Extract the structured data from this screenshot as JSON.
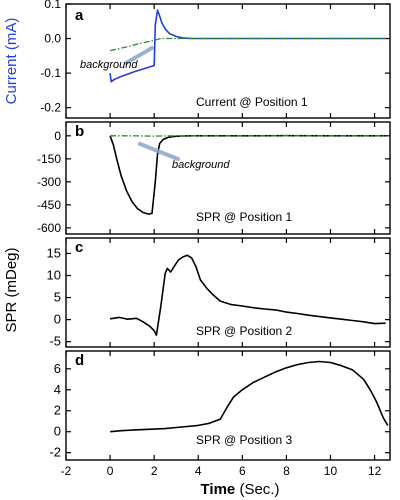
{
  "colors": {
    "current": "#1f3fe0",
    "background_trace": "#2e8b2e",
    "signal": "#000000",
    "axis": "#000000",
    "ylabel_current": "#1f3fe0"
  },
  "xaxis": {
    "label_bold": "Time",
    "label_rest": " (Sec.)",
    "range": [
      -2,
      12.7
    ],
    "ticks": [
      -2,
      0,
      2,
      4,
      6,
      8,
      10,
      12
    ]
  },
  "shared_ylabel": "SPR (mDeg)",
  "chart_data": [
    {
      "id": "a",
      "type": "line",
      "panel_letter": "a",
      "annotation": "Current @ Position 1",
      "ylabel": "Current (mA)",
      "ylim": [
        -0.23,
        0.1
      ],
      "yticks": [
        0.1,
        0.0,
        -0.1,
        -0.2
      ],
      "ytick_labels": [
        "0.1",
        "0.0",
        "-0.1",
        "-0.2"
      ],
      "label_text": "background",
      "series": [
        {
          "role": "signal",
          "style": "solid",
          "color_key": "current",
          "x": [
            0.0,
            0.05,
            0.2,
            0.5,
            0.8,
            1.1,
            1.4,
            1.7,
            2.0,
            2.05,
            2.15,
            2.25,
            2.35,
            2.5,
            2.7,
            3.0,
            3.3,
            3.7,
            4.5,
            6,
            8,
            10,
            12.5
          ],
          "y": [
            -0.1,
            -0.125,
            -0.118,
            -0.11,
            -0.103,
            -0.096,
            -0.09,
            -0.084,
            -0.078,
            0.04,
            0.082,
            0.065,
            0.045,
            0.028,
            0.014,
            0.006,
            0.002,
            0.0,
            0.0,
            0.0,
            0.0,
            0.0,
            0.0
          ]
        },
        {
          "role": "background",
          "style": "dashdot",
          "color_key": "background_trace",
          "x": [
            0.0,
            0.5,
            1.0,
            1.5,
            2.0,
            2.3,
            3.0,
            5,
            8,
            12.5
          ],
          "y": [
            -0.035,
            -0.028,
            -0.02,
            -0.012,
            -0.005,
            0.0,
            0.0,
            0.0,
            0.0,
            0.0
          ]
        }
      ]
    },
    {
      "id": "b",
      "type": "line",
      "panel_letter": "b",
      "annotation": "SPR @ Position 1",
      "ylim": [
        -640,
        90
      ],
      "yticks": [
        0,
        -150,
        -300,
        -450,
        -600
      ],
      "ytick_labels": [
        "0",
        "-150",
        "-300",
        "-450",
        "-600"
      ],
      "label_text": "background",
      "series": [
        {
          "role": "signal",
          "style": "solid",
          "color_key": "signal",
          "x": [
            0.0,
            0.15,
            0.3,
            0.5,
            0.75,
            1.0,
            1.25,
            1.5,
            1.75,
            1.9,
            2.05,
            2.15,
            2.25,
            2.4,
            2.6,
            2.8,
            3.0,
            3.3,
            3.7,
            4.5,
            6,
            8,
            10,
            12.5
          ],
          "y": [
            0,
            -60,
            -150,
            -260,
            -360,
            -430,
            -475,
            -500,
            -510,
            -505,
            -300,
            -120,
            -50,
            -25,
            -12,
            -6,
            -3,
            -1,
            0,
            0,
            0,
            1,
            0,
            0
          ]
        },
        {
          "role": "background",
          "style": "dashdot",
          "color_key": "background_trace",
          "x": [
            0.0,
            1.0,
            2.0,
            3.0,
            5,
            8,
            12.5
          ],
          "y": [
            0,
            0,
            -2,
            0,
            0,
            0,
            0
          ]
        }
      ]
    },
    {
      "id": "c",
      "type": "line",
      "panel_letter": "c",
      "annotation": "SPR @ Position 2",
      "ylim": [
        -6.2,
        18.5
      ],
      "yticks": [
        15,
        10,
        5,
        0,
        -5
      ],
      "ytick_labels": [
        "15",
        "10",
        "5",
        "0",
        "-5"
      ],
      "series": [
        {
          "role": "signal",
          "style": "solid",
          "color_key": "signal",
          "x": [
            0.0,
            0.4,
            0.8,
            1.2,
            1.5,
            1.8,
            2.0,
            2.1,
            2.3,
            2.5,
            2.6,
            2.75,
            2.9,
            3.1,
            3.3,
            3.5,
            3.7,
            3.9,
            4.1,
            4.4,
            4.7,
            5.0,
            5.5,
            6.0,
            6.5,
            7.0,
            7.5,
            8.0,
            8.5,
            9.0,
            9.5,
            10.0,
            10.5,
            11.0,
            11.5,
            12.0,
            12.5
          ],
          "y": [
            0.2,
            0.5,
            0.1,
            0.3,
            -0.5,
            -1.5,
            -2.5,
            -3.5,
            3.0,
            10.5,
            11.6,
            10.8,
            12.0,
            13.5,
            14.2,
            14.6,
            14.0,
            12.0,
            9.0,
            7.0,
            5.5,
            4.2,
            3.4,
            3.1,
            2.7,
            2.4,
            2.2,
            1.7,
            1.4,
            1.0,
            0.7,
            0.4,
            0.1,
            -0.2,
            -0.5,
            -0.9,
            -0.8
          ]
        }
      ]
    },
    {
      "id": "d",
      "type": "line",
      "panel_letter": "d",
      "annotation": "SPR @ Position 3",
      "ylim": [
        -2.7,
        7.7
      ],
      "yticks": [
        6,
        4,
        2,
        0,
        -2
      ],
      "ytick_labels": [
        "6",
        "4",
        "2",
        "0",
        "-2"
      ],
      "series": [
        {
          "role": "signal",
          "style": "solid",
          "color_key": "signal",
          "x": [
            0.0,
            0.5,
            1.0,
            1.5,
            2.0,
            2.5,
            3.0,
            3.5,
            4.0,
            4.5,
            5.0,
            5.3,
            5.6,
            6.0,
            6.5,
            7.0,
            7.5,
            8.0,
            8.5,
            9.0,
            9.5,
            10.0,
            10.5,
            11.0,
            11.5,
            11.8,
            12.1,
            12.4,
            12.6
          ],
          "y": [
            0.0,
            0.1,
            0.15,
            0.2,
            0.25,
            0.3,
            0.4,
            0.5,
            0.6,
            0.8,
            1.2,
            2.3,
            3.3,
            4.0,
            4.7,
            5.2,
            5.7,
            6.1,
            6.4,
            6.6,
            6.7,
            6.6,
            6.3,
            5.9,
            5.0,
            4.0,
            2.8,
            1.3,
            0.6
          ]
        }
      ]
    }
  ]
}
